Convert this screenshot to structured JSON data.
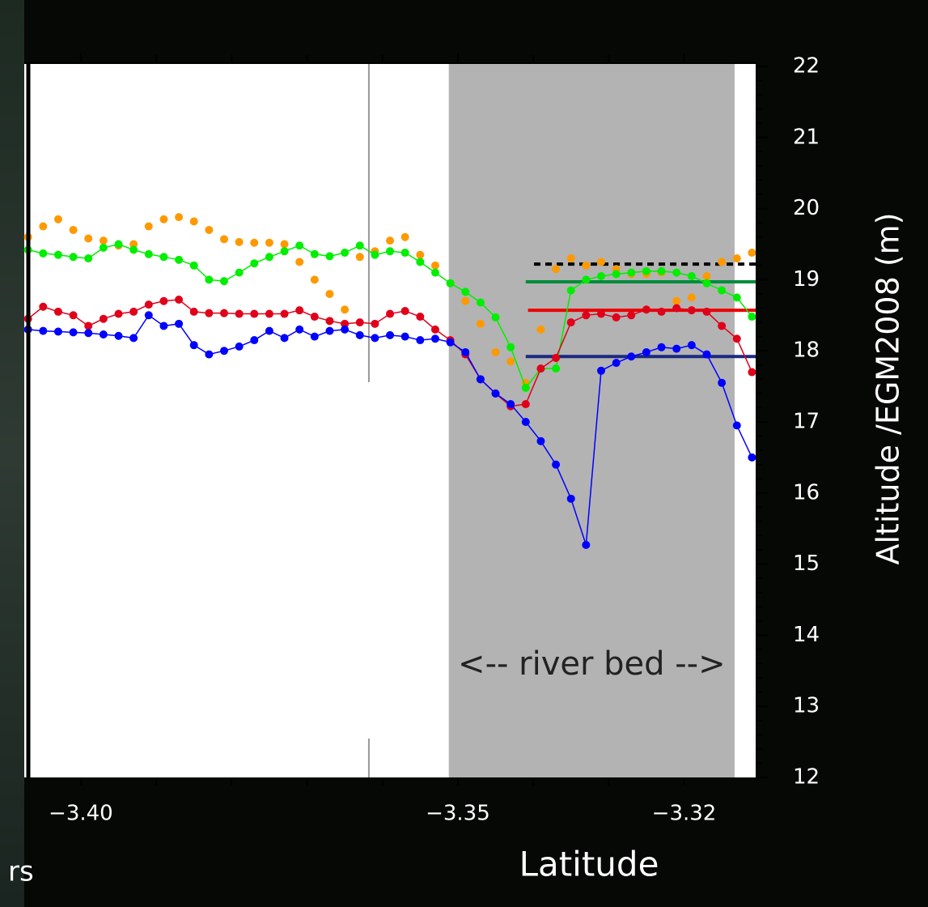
{
  "chart_data": {
    "type": "line",
    "x_label": "Latitude",
    "y_label": "Altitude /EGM2008 (m)",
    "xlim": [
      -3.4075,
      -3.3104
    ],
    "ylim": [
      12,
      22
    ],
    "xticks": [
      {
        "value": -3.4,
        "label": "−3.40"
      },
      {
        "value": -3.35,
        "label": "−3.35"
      },
      {
        "value": -3.32,
        "label": "−3.32"
      }
    ],
    "x_minor_ticks": [
      -3.39,
      -3.38,
      -3.37,
      -3.36,
      -3.34,
      -3.33
    ],
    "yticks": [
      12,
      13,
      14,
      15,
      16,
      17,
      18,
      19,
      20,
      21,
      22
    ],
    "shaded_region": {
      "x": [
        -3.3512,
        -3.3133
      ],
      "label": "<-- river bed -->",
      "color": "#b3b3b3"
    },
    "divider_x": -3.3618,
    "x": [
      -3.407,
      -3.405,
      -3.403,
      -3.401,
      -3.399,
      -3.397,
      -3.395,
      -3.393,
      -3.391,
      -3.389,
      -3.387,
      -3.385,
      -3.383,
      -3.381,
      -3.379,
      -3.377,
      -3.375,
      -3.373,
      -3.371,
      -3.369,
      -3.367,
      -3.365,
      -3.363,
      -3.361,
      -3.359,
      -3.357,
      -3.355,
      -3.353,
      -3.351,
      -3.349,
      -3.347,
      -3.345,
      -3.343,
      -3.341,
      -3.339,
      -3.337,
      -3.335,
      -3.333,
      -3.331,
      -3.329,
      -3.327,
      -3.325,
      -3.323,
      -3.321,
      -3.319,
      -3.317,
      -3.315,
      -3.313,
      -3.311
    ],
    "series": [
      {
        "color": "#ff9900",
        "line": false,
        "values": [
          19.6,
          19.75,
          19.85,
          19.7,
          19.58,
          19.55,
          19.48,
          19.5,
          19.75,
          19.85,
          19.88,
          19.82,
          19.7,
          19.57,
          19.53,
          19.52,
          19.52,
          19.5,
          19.25,
          19.0,
          18.8,
          18.58,
          19.32,
          19.4,
          19.55,
          19.6,
          19.35,
          19.2,
          18.95,
          18.7,
          18.38,
          17.98,
          17.85,
          17.55,
          18.3,
          19.15,
          19.3,
          19.2,
          19.25,
          19.15,
          19.08,
          19.08,
          19.1,
          18.7,
          18.75,
          19.05,
          19.25,
          19.3,
          19.38
        ]
      },
      {
        "color": "#00ee00",
        "line": true,
        "values": [
          19.42,
          19.37,
          19.35,
          19.32,
          19.3,
          19.45,
          19.5,
          19.42,
          19.36,
          19.32,
          19.28,
          19.2,
          19.0,
          18.98,
          19.1,
          19.23,
          19.32,
          19.4,
          19.48,
          19.36,
          19.33,
          19.38,
          19.48,
          19.35,
          19.4,
          19.38,
          19.25,
          19.1,
          18.95,
          18.83,
          18.68,
          18.47,
          18.05,
          17.48,
          17.75,
          17.75,
          18.85,
          19.0,
          19.05,
          19.08,
          19.1,
          19.12,
          19.12,
          19.1,
          19.05,
          18.95,
          18.85,
          18.75,
          18.48
        ]
      },
      {
        "color": "#e0001a",
        "line": true,
        "values": [
          18.45,
          18.62,
          18.55,
          18.5,
          18.35,
          18.45,
          18.52,
          18.55,
          18.65,
          18.7,
          18.72,
          18.55,
          18.53,
          18.53,
          18.52,
          18.52,
          18.52,
          18.52,
          18.57,
          18.48,
          18.42,
          18.38,
          18.4,
          18.38,
          18.52,
          18.56,
          18.48,
          18.3,
          18.15,
          17.95,
          17.6,
          17.4,
          17.22,
          17.25,
          17.75,
          17.9,
          18.4,
          18.5,
          18.52,
          18.47,
          18.5,
          18.58,
          18.55,
          18.6,
          18.57,
          18.55,
          18.35,
          18.17,
          17.7
        ]
      },
      {
        "color": "#0000ff",
        "line": true,
        "values": [
          18.3,
          18.28,
          18.27,
          18.26,
          18.25,
          18.23,
          18.21,
          18.18,
          18.5,
          18.35,
          18.38,
          18.08,
          17.95,
          18.0,
          18.06,
          18.15,
          18.28,
          18.18,
          18.3,
          18.2,
          18.28,
          18.3,
          18.22,
          18.18,
          18.22,
          18.2,
          18.15,
          18.17,
          18.12,
          17.98,
          17.6,
          17.4,
          17.25,
          17.0,
          16.73,
          16.4,
          15.92,
          15.27,
          17.72,
          17.83,
          17.92,
          17.98,
          18.05,
          18.03,
          18.08,
          17.95,
          17.55,
          16.95,
          16.5
        ]
      }
    ],
    "reference_lines": [
      {
        "value": 19.22,
        "x": [
          -3.3399,
          -3.3104
        ],
        "color": "#000000",
        "dashed": true
      },
      {
        "value": 18.97,
        "x": [
          -3.341,
          -3.3104
        ],
        "color": "#008c3c",
        "dashed": false
      },
      {
        "value": 18.57,
        "x": [
          -3.3407,
          -3.3104
        ],
        "color": "#ee0000",
        "dashed": false
      },
      {
        "value": 17.92,
        "x": [
          -3.341,
          -3.3104
        ],
        "color": "#1a2a80",
        "dashed": false
      }
    ],
    "background_text": "rs"
  }
}
